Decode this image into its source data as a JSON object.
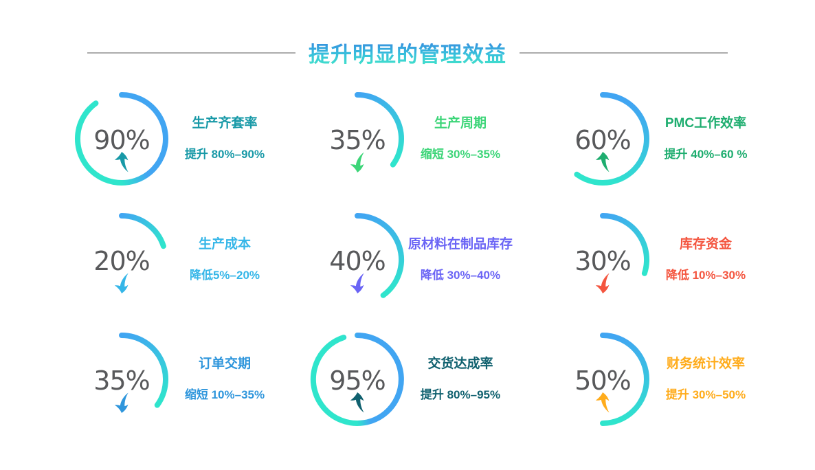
{
  "title": "提升明显的管理效益",
  "theme": {
    "title_gradient_top": "#3478E0",
    "title_gradient_bottom": "#45EBC5",
    "divider_color": "#ACACAC",
    "arc_gradient_start": "#41A5F2",
    "arc_gradient_end": "#2FE5CC",
    "percent_text_color": "#58595B"
  },
  "chart_data": {
    "type": "gauge-grid",
    "title": "提升明显的管理效益",
    "legend_position": "none",
    "items": [
      {
        "metric": "生产齐套率",
        "percent": 90,
        "percent_label": "90%",
        "change": "提升 80%–90%",
        "direction": "up",
        "color": "#1899A7"
      },
      {
        "metric": "生产周期",
        "percent": 35,
        "percent_label": "35%",
        "change": "缩短 30%–35%",
        "direction": "down",
        "color": "#3CD578"
      },
      {
        "metric": "PMC工作效率",
        "percent": 60,
        "percent_label": "60%",
        "change": "提升 40%–60 %",
        "direction": "up",
        "color": "#1EAD6F"
      },
      {
        "metric": "生产成本",
        "percent": 20,
        "percent_label": "20%",
        "change": "降低5%–20%",
        "direction": "down",
        "color": "#35B6E8"
      },
      {
        "metric": "原材料在制品库存",
        "percent": 40,
        "percent_label": "40%",
        "change": "降低 30%–40%",
        "direction": "down",
        "color": "#6A64F5"
      },
      {
        "metric": "库存资金",
        "percent": 30,
        "percent_label": "30%",
        "change": "降低 10%–30%",
        "direction": "down",
        "color": "#F4553F"
      },
      {
        "metric": "订单交期",
        "percent": 35,
        "percent_label": "35%",
        "change": "缩短 10%–35%",
        "direction": "down",
        "color": "#2F96DC"
      },
      {
        "metric": "交货达成率",
        "percent": 95,
        "percent_label": "95%",
        "change": "提升 80%–95%",
        "direction": "up",
        "color": "#10616F"
      },
      {
        "metric": "财务统计效率",
        "percent": 50,
        "percent_label": "50%",
        "change": "提升 30%–50%",
        "direction": "up",
        "color": "#FFAC1C"
      }
    ]
  }
}
